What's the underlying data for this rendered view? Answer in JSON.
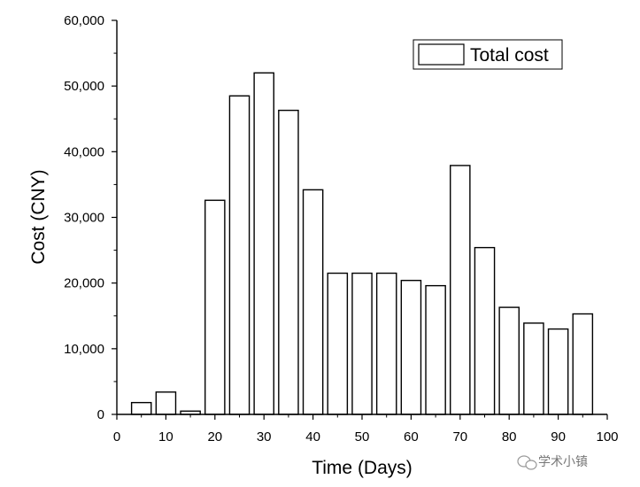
{
  "chart_data": {
    "type": "bar",
    "xlabel": "Time (Days)",
    "ylabel": "Cost (CNY)",
    "xlim": [
      0,
      100
    ],
    "ylim": [
      0,
      60000
    ],
    "x_ticks": [
      0,
      10,
      20,
      30,
      40,
      50,
      60,
      70,
      80,
      90,
      100
    ],
    "x_tick_labels": [
      "0",
      "10",
      "20",
      "30",
      "40",
      "50",
      "60",
      "70",
      "80",
      "90",
      "100"
    ],
    "y_ticks": [
      0,
      10000,
      20000,
      30000,
      40000,
      50000,
      60000
    ],
    "y_tick_labels": [
      "0",
      "10,000",
      "20,000",
      "30,000",
      "40,000",
      "50,000",
      "60,000"
    ],
    "grid": false,
    "legend_position": "top-right",
    "series": [
      {
        "name": "Total cost",
        "x": [
          5,
          10,
          15,
          20,
          25,
          30,
          35,
          40,
          45,
          50,
          55,
          60,
          65,
          70,
          75,
          80,
          85,
          90,
          95
        ],
        "values": [
          1800,
          3400,
          500,
          32600,
          48500,
          52000,
          46300,
          34200,
          21500,
          21500,
          21500,
          20400,
          19600,
          37900,
          25400,
          16300,
          13900,
          13000,
          15300
        ]
      }
    ],
    "bar_width_days": 4,
    "bar_fill": "#ffffff",
    "bar_edge": "#000000"
  },
  "watermark": {
    "text": "学术小镇",
    "icon": "wechat-icon"
  }
}
